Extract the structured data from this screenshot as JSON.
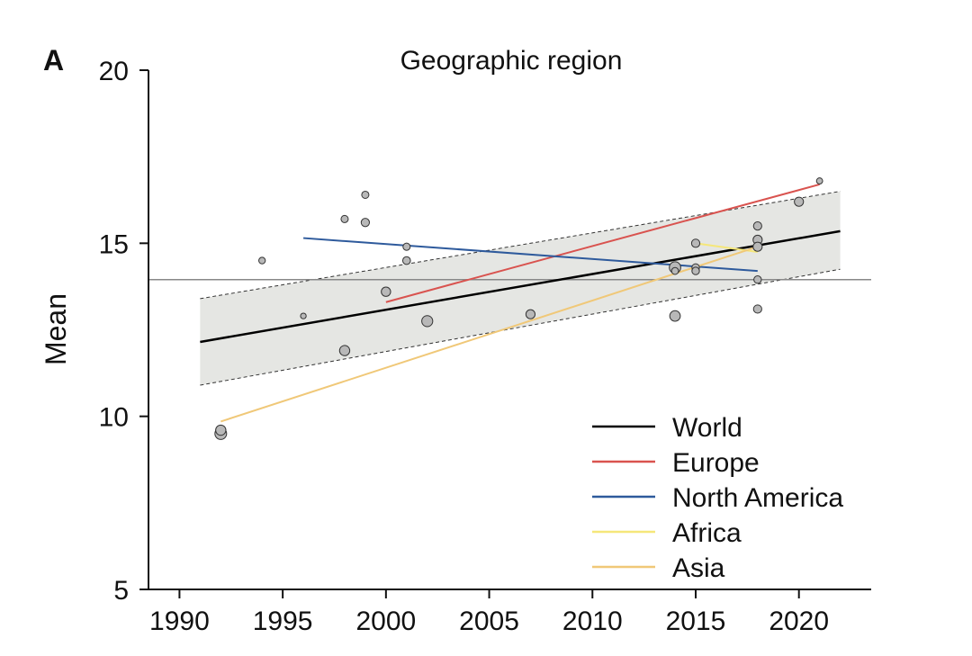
{
  "panel_label": "A",
  "chart_data": {
    "type": "scatter",
    "title": "Geographic region",
    "xlabel": "",
    "ylabel": "Mean",
    "xlim": [
      1988.5,
      2023.5
    ],
    "ylim": [
      5,
      20
    ],
    "xticks": [
      1990,
      1995,
      2000,
      2005,
      2010,
      2015,
      2020
    ],
    "yticks": [
      5,
      10,
      15,
      20
    ],
    "reference_line_y": 13.95,
    "points": [
      {
        "x": 1992.0,
        "y": 9.5,
        "weight": 3
      },
      {
        "x": 1992.0,
        "y": 9.6,
        "weight": 2
      },
      {
        "x": 1994.0,
        "y": 14.5,
        "weight": 0.4
      },
      {
        "x": 1996.0,
        "y": 12.9,
        "weight": 0.2
      },
      {
        "x": 1998.0,
        "y": 11.9,
        "weight": 2
      },
      {
        "x": 1998.0,
        "y": 15.7,
        "weight": 0.6
      },
      {
        "x": 1999.0,
        "y": 16.4,
        "weight": 0.6
      },
      {
        "x": 1999.0,
        "y": 15.6,
        "weight": 1
      },
      {
        "x": 2000.0,
        "y": 13.6,
        "weight": 1.5
      },
      {
        "x": 2001.0,
        "y": 14.9,
        "weight": 0.6
      },
      {
        "x": 2001.0,
        "y": 14.5,
        "weight": 0.8
      },
      {
        "x": 2002.0,
        "y": 12.75,
        "weight": 2.5
      },
      {
        "x": 2007.0,
        "y": 12.95,
        "weight": 1.4
      },
      {
        "x": 2014.0,
        "y": 12.9,
        "weight": 2.2
      },
      {
        "x": 2014.0,
        "y": 14.3,
        "weight": 2.8
      },
      {
        "x": 2014.0,
        "y": 14.2,
        "weight": 0.5
      },
      {
        "x": 2015.0,
        "y": 15.0,
        "weight": 1
      },
      {
        "x": 2015.0,
        "y": 14.3,
        "weight": 0.7
      },
      {
        "x": 2015.0,
        "y": 14.2,
        "weight": 0.7
      },
      {
        "x": 2018.0,
        "y": 15.5,
        "weight": 1
      },
      {
        "x": 2018.0,
        "y": 15.1,
        "weight": 1.4
      },
      {
        "x": 2018.0,
        "y": 14.9,
        "weight": 1.4
      },
      {
        "x": 2018.0,
        "y": 13.95,
        "weight": 0.7
      },
      {
        "x": 2018.0,
        "y": 13.1,
        "weight": 1
      },
      {
        "x": 2020.0,
        "y": 16.2,
        "weight": 1.4
      },
      {
        "x": 2021.0,
        "y": 16.8,
        "weight": 0.3
      }
    ],
    "confidence_band": {
      "x": [
        1991,
        2022
      ],
      "upper": [
        13.4,
        16.5
      ],
      "lower": [
        10.9,
        14.25
      ]
    },
    "series": [
      {
        "name": "World",
        "color": "#000000",
        "x": [
          1991,
          2022
        ],
        "y": [
          12.15,
          15.35
        ]
      },
      {
        "name": "Europe",
        "color": "#d9534f",
        "x": [
          2000,
          2021
        ],
        "y": [
          13.3,
          16.7
        ]
      },
      {
        "name": "North America",
        "color": "#2e5a9c",
        "x": [
          1996,
          2018
        ],
        "y": [
          15.15,
          14.2
        ]
      },
      {
        "name": "Africa",
        "color": "#f5e77a",
        "x": [
          2015,
          2018
        ],
        "y": [
          15.0,
          14.75
        ]
      },
      {
        "name": "Asia",
        "color": "#f0c878",
        "x": [
          1992,
          2018
        ],
        "y": [
          9.85,
          14.9
        ]
      }
    ],
    "legend_position": "bottom-right"
  }
}
